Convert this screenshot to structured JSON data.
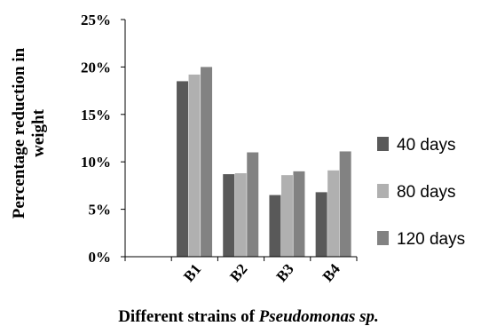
{
  "chart_data": {
    "type": "bar",
    "categories": [
      "",
      "B1",
      "B2",
      "B3",
      "B4"
    ],
    "series": [
      {
        "name": "40 days",
        "values": [
          null,
          0.185,
          0.087,
          0.065,
          0.068
        ],
        "color": "#595959"
      },
      {
        "name": "80 days",
        "values": [
          null,
          0.192,
          0.088,
          0.086,
          0.091
        ],
        "color": "#b0b0b0"
      },
      {
        "name": "120 days",
        "values": [
          null,
          0.2,
          0.11,
          0.09,
          0.111
        ],
        "color": "#828282"
      }
    ],
    "yticks": [
      "0%",
      "5%",
      "10%",
      "15%",
      "20%",
      "25%"
    ],
    "ylim": [
      0,
      0.25
    ],
    "ylabel_line1": "Percentage reduction in",
    "ylabel_line2": "weight",
    "xlabel_main": "Different strains of ",
    "xlabel_italic": "Pseudomonas sp.",
    "legend_position": "right",
    "grid": false
  }
}
